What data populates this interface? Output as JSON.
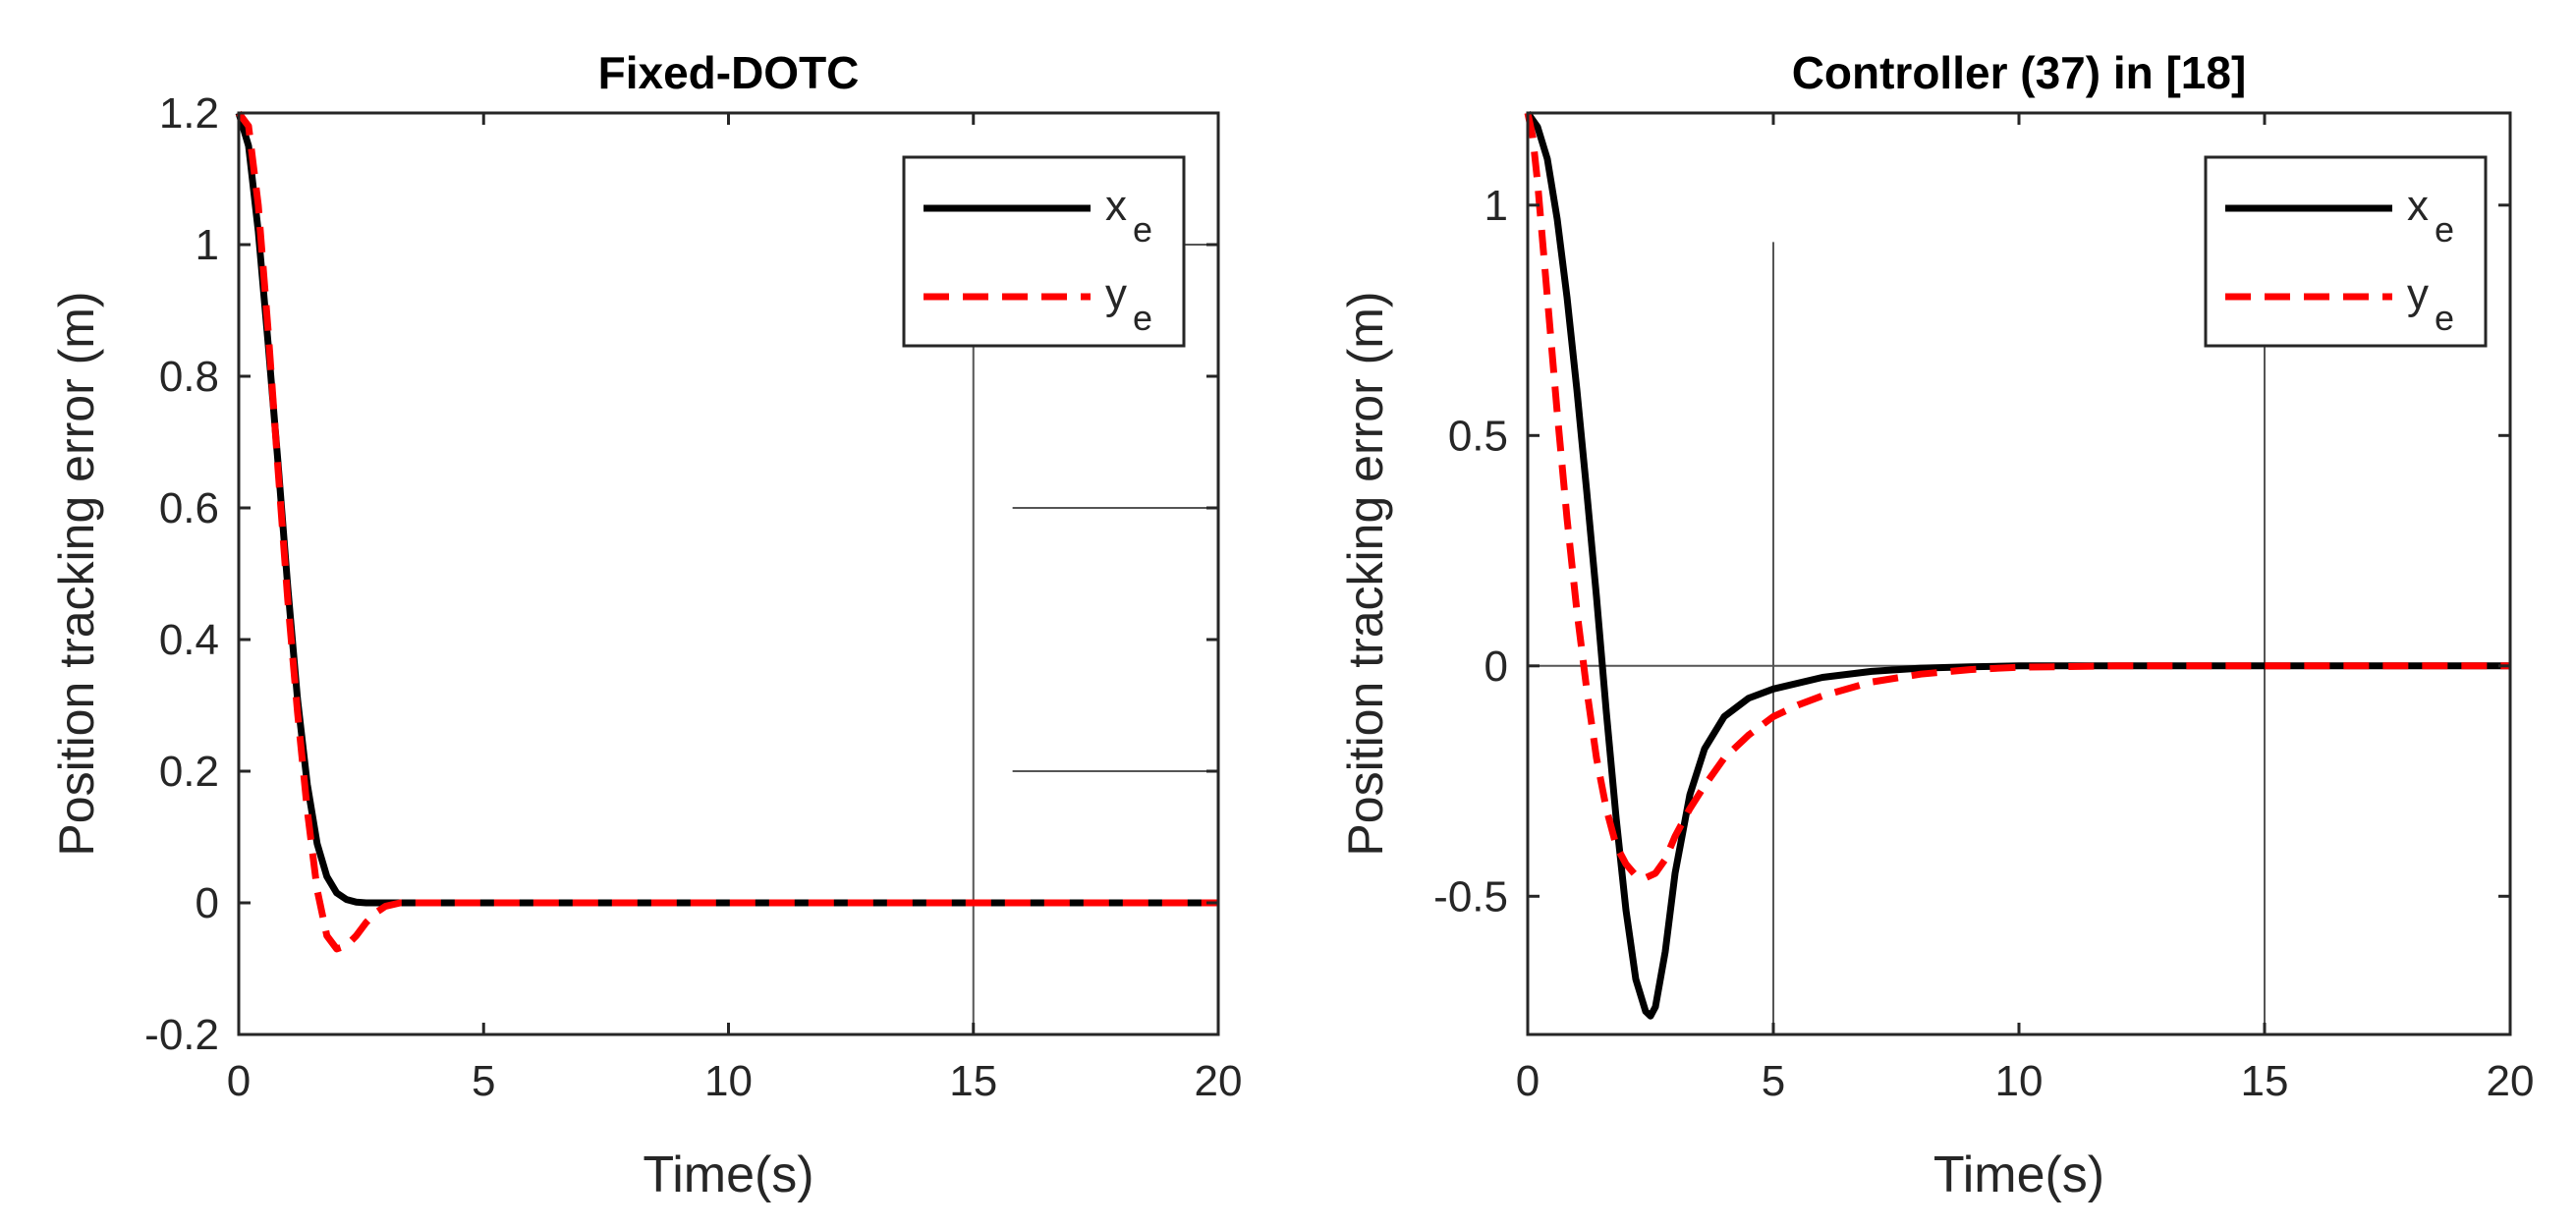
{
  "chart_data": [
    {
      "type": "line",
      "title": "Fixed-DOTC",
      "xlabel": "Time(s)",
      "ylabel": "Position tracking error (m)",
      "xlim": [
        0,
        20
      ],
      "ylim": [
        -0.2,
        1.2
      ],
      "xticks": [
        0,
        5,
        10,
        15,
        20
      ],
      "xtick_labels": [
        "0",
        "5",
        "10",
        "15",
        "20"
      ],
      "yticks": [
        -0.2,
        0,
        0.2,
        0.4,
        0.6,
        0.8,
        1,
        1.2
      ],
      "ytick_labels": [
        "-0.2",
        "0",
        "0.2",
        "0.4",
        "0.6",
        "0.8",
        "1",
        "1.2"
      ],
      "grid": false,
      "legend_position": "top-right",
      "series": [
        {
          "name": "x",
          "subscript": "e",
          "color": "#000000",
          "style": "solid",
          "x": [
            0,
            0.2,
            0.4,
            0.6,
            0.8,
            1.0,
            1.2,
            1.4,
            1.6,
            1.8,
            2.0,
            2.2,
            2.4,
            2.6,
            2.8,
            3,
            5,
            10,
            15,
            20
          ],
          "y": [
            1.2,
            1.15,
            1.02,
            0.85,
            0.67,
            0.48,
            0.31,
            0.18,
            0.09,
            0.04,
            0.015,
            0.005,
            0.001,
            0,
            0,
            0,
            0,
            0,
            0,
            0
          ]
        },
        {
          "name": "y",
          "subscript": "e",
          "color": "#ff0000",
          "style": "dashed",
          "x": [
            0,
            0.2,
            0.4,
            0.6,
            0.8,
            1.0,
            1.2,
            1.4,
            1.6,
            1.8,
            2.0,
            2.2,
            2.4,
            2.6,
            2.8,
            3.0,
            3.3,
            5,
            10,
            15,
            20
          ],
          "y": [
            1.2,
            1.18,
            1.06,
            0.87,
            0.66,
            0.46,
            0.29,
            0.14,
            0.02,
            -0.05,
            -0.07,
            -0.065,
            -0.05,
            -0.03,
            -0.015,
            -0.005,
            0,
            0,
            0,
            0,
            0
          ]
        }
      ],
      "annotations": [
        {
          "type": "vline",
          "x": 15,
          "y0": -0.2,
          "y1": 1.0
        },
        {
          "type": "hline",
          "y": 1.0,
          "x0": 17,
          "x1": 20
        },
        {
          "type": "hline",
          "y": 0.6,
          "x0": 15.8,
          "x1": 20
        },
        {
          "type": "hline",
          "y": 0.2,
          "x0": 15.8,
          "x1": 20
        }
      ]
    },
    {
      "type": "line",
      "title": "Controller (37) in [18]",
      "xlabel": "Time(s)",
      "ylabel": "Position tracking error (m)",
      "xlim": [
        0,
        20
      ],
      "ylim": [
        -0.8,
        1.2
      ],
      "xticks": [
        0,
        5,
        10,
        15,
        20
      ],
      "xtick_labels": [
        "0",
        "5",
        "10",
        "15",
        "20"
      ],
      "yticks": [
        -0.5,
        0,
        0.5,
        1
      ],
      "ytick_labels": [
        "-0.5",
        "0",
        "0.5",
        "1"
      ],
      "grid": false,
      "legend_position": "top-right",
      "series": [
        {
          "name": "x",
          "subscript": "e",
          "color": "#000000",
          "style": "solid",
          "x": [
            0,
            0.2,
            0.4,
            0.6,
            0.8,
            1.0,
            1.2,
            1.4,
            1.6,
            1.8,
            2.0,
            2.2,
            2.4,
            2.5,
            2.6,
            2.8,
            3.0,
            3.3,
            3.6,
            4.0,
            4.5,
            5,
            6,
            7,
            8,
            9,
            10,
            12,
            15,
            20
          ],
          "y": [
            1.2,
            1.17,
            1.1,
            0.97,
            0.8,
            0.6,
            0.38,
            0.15,
            -0.1,
            -0.33,
            -0.53,
            -0.68,
            -0.75,
            -0.76,
            -0.74,
            -0.62,
            -0.45,
            -0.28,
            -0.18,
            -0.11,
            -0.07,
            -0.05,
            -0.025,
            -0.012,
            -0.005,
            -0.002,
            0,
            0,
            0,
            0
          ]
        },
        {
          "name": "y",
          "subscript": "e",
          "color": "#ff0000",
          "style": "dashed",
          "x": [
            0,
            0.1,
            0.2,
            0.4,
            0.6,
            0.8,
            1.0,
            1.2,
            1.4,
            1.6,
            1.8,
            2.0,
            2.2,
            2.4,
            2.6,
            2.8,
            3.0,
            3.3,
            3.6,
            4.0,
            4.5,
            5,
            5.5,
            6,
            7,
            8,
            9,
            10,
            12,
            15,
            20
          ],
          "y": [
            1.2,
            1.15,
            1.05,
            0.8,
            0.55,
            0.32,
            0.12,
            -0.05,
            -0.2,
            -0.31,
            -0.39,
            -0.43,
            -0.455,
            -0.46,
            -0.45,
            -0.42,
            -0.37,
            -0.31,
            -0.26,
            -0.2,
            -0.15,
            -0.11,
            -0.085,
            -0.065,
            -0.035,
            -0.018,
            -0.008,
            -0.003,
            0,
            0,
            0
          ]
        }
      ],
      "annotations": [
        {
          "type": "vline",
          "x": 5,
          "y0": -0.8,
          "y1": 0.92
        },
        {
          "type": "vline",
          "x": 15,
          "y0": -0.8,
          "y1": 0.72
        },
        {
          "type": "hline",
          "y": 0,
          "x0": 0,
          "x1": 20
        }
      ]
    }
  ]
}
